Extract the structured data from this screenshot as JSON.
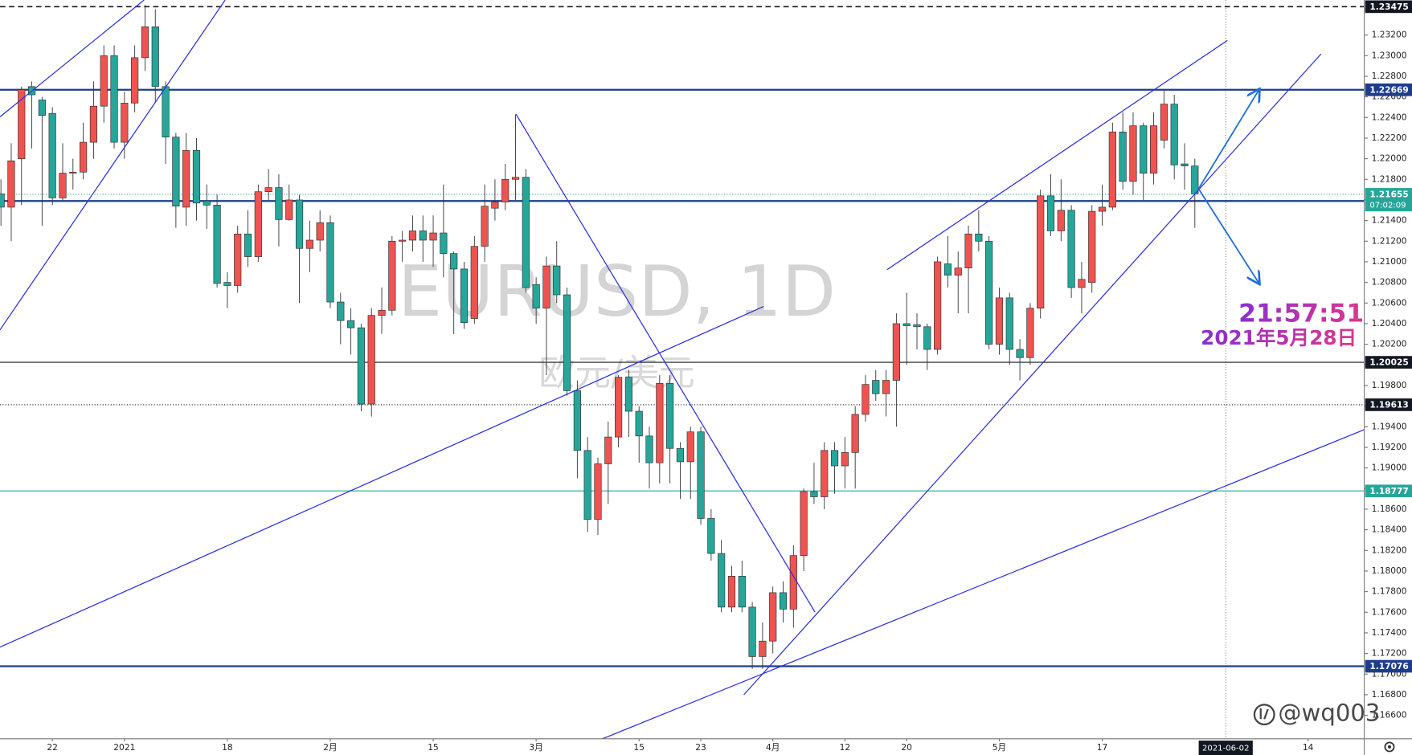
{
  "chart_data": {
    "type": "candlestick",
    "title": "EURUSD, 1D",
    "subtitle": "欧元/美元",
    "time_stamp": "21:57:51",
    "date_stamp": "2021年5月28日",
    "watermark": "@wq003",
    "up_color": "#ef5350",
    "down_color": "#26a69a",
    "grid": false,
    "open": [
      1.2166,
      1.2153,
      1.22,
      1.227,
      1.2257,
      1.2244,
      1.2162,
      1.2186,
      1.2187,
      1.2216,
      1.2251,
      1.23,
      1.2216,
      1.2254,
      1.2298,
      1.2328,
      1.227,
      1.2221,
      1.2153,
      1.2208,
      1.2159,
      1.2155,
      1.208,
      1.2077,
      1.2127,
      1.2105,
      1.2168,
      1.2172,
      1.2141,
      1.216,
      1.2113,
      1.2121,
      1.2138,
      1.2061,
      1.2043,
      1.2036,
      1.1962,
      1.2048,
      1.2053,
      1.212,
      1.2121,
      1.213,
      1.2121,
      1.2128,
      1.2108,
      1.2093,
      1.2045,
      1.2115,
      1.2152,
      1.2158,
      1.218,
      1.2182,
      1.2078,
      1.2055,
      1.2096,
      1.2068,
      1.1975,
      1.1917,
      1.185,
      1.1904,
      1.193,
      1.1988,
      1.1955,
      1.1931,
      1.1905,
      1.1982,
      1.1919,
      1.1906,
      1.1935,
      1.1851,
      1.1817,
      1.1765,
      1.1795,
      1.1765,
      1.1717,
      1.1732,
      1.1779,
      1.1763,
      1.1815,
      1.1877,
      1.1872,
      1.1917,
      1.1902,
      1.1915,
      1.1952,
      1.1985,
      1.1972,
      1.1985,
      1.204,
      1.2039,
      1.2037,
      1.2015,
      1.2098,
      1.2087,
      1.2094,
      1.2127,
      1.212,
      1.202,
      1.2065,
      1.2015,
      1.2007,
      1.2055,
      1.2164,
      1.213,
      1.215,
      1.2075,
      1.208,
      1.2149,
      1.2153,
      1.2226,
      1.2178,
      1.2232,
      1.2186,
      1.2218,
      1.2253,
      1.2195,
      1.2193
    ],
    "high": [
      1.218,
      1.2215,
      1.227,
      1.2275,
      1.226,
      1.225,
      1.2215,
      1.22,
      1.2235,
      1.2275,
      1.231,
      1.231,
      1.2265,
      1.231,
      1.2349,
      1.2345,
      1.2275,
      1.2225,
      1.2225,
      1.222,
      1.2175,
      1.2165,
      1.209,
      1.2135,
      1.215,
      1.2175,
      1.219,
      1.2185,
      1.2175,
      1.2165,
      1.214,
      1.215,
      1.2145,
      1.207,
      1.2055,
      1.204,
      1.2055,
      1.2075,
      1.2125,
      1.213,
      1.2145,
      1.2145,
      1.2145,
      1.2175,
      1.211,
      1.21,
      1.2125,
      1.2175,
      1.218,
      1.2195,
      1.2243,
      1.219,
      1.2085,
      1.2105,
      1.212,
      1.2075,
      1.1985,
      1.193,
      1.191,
      1.1945,
      1.199,
      1.1995,
      1.196,
      1.194,
      1.199,
      1.199,
      1.1925,
      1.194,
      1.194,
      1.186,
      1.183,
      1.1805,
      1.181,
      1.177,
      1.175,
      1.1785,
      1.179,
      1.1825,
      1.188,
      1.1905,
      1.1925,
      1.1925,
      1.193,
      1.196,
      1.199,
      1.1995,
      1.1995,
      1.205,
      1.207,
      1.205,
      1.204,
      1.2105,
      1.2125,
      1.211,
      1.2135,
      1.215,
      1.2125,
      1.2075,
      1.207,
      1.2025,
      1.206,
      1.217,
      1.2185,
      1.218,
      1.2155,
      1.21,
      1.2155,
      1.2175,
      1.2235,
      1.2245,
      1.2245,
      1.2235,
      1.2245,
      1.2266,
      1.2262,
      1.2215,
      1.22
    ],
    "low": [
      1.2135,
      1.212,
      1.2155,
      1.221,
      1.2135,
      1.2155,
      1.216,
      1.217,
      1.218,
      1.22,
      1.2235,
      1.221,
      1.22,
      1.2245,
      1.2285,
      1.2255,
      1.2195,
      1.2133,
      1.2135,
      1.214,
      1.2132,
      1.2075,
      1.2055,
      1.207,
      1.2095,
      1.21,
      1.216,
      1.2115,
      1.214,
      1.206,
      1.209,
      1.211,
      1.2055,
      1.202,
      1.201,
      1.1955,
      1.195,
      1.203,
      1.2048,
      1.21,
      1.211,
      1.21,
      1.2095,
      1.2085,
      1.203,
      1.2035,
      1.204,
      1.21,
      1.214,
      1.215,
      1.216,
      1.207,
      1.204,
      1.199,
      1.206,
      1.197,
      1.189,
      1.1838,
      1.1835,
      1.1865,
      1.192,
      1.193,
      1.1905,
      1.188,
      1.1885,
      1.1885,
      1.187,
      1.187,
      1.1845,
      1.181,
      1.176,
      1.176,
      1.176,
      1.1705,
      1.1705,
      1.172,
      1.175,
      1.1745,
      1.18,
      1.1865,
      1.186,
      1.1875,
      1.188,
      1.188,
      1.1945,
      1.1965,
      1.195,
      1.194,
      1.2,
      1.2015,
      1.1995,
      1.201,
      1.2075,
      1.205,
      1.205,
      1.211,
      1.2015,
      1.201,
      1.2,
      1.1985,
      1.2,
      1.2045,
      1.2125,
      1.212,
      1.2065,
      1.205,
      1.207,
      1.2135,
      1.215,
      1.217,
      1.2165,
      1.216,
      1.2175,
      1.221,
      1.218,
      1.217,
      1.2133
    ],
    "close": [
      1.2153,
      1.2198,
      1.2267,
      1.2262,
      1.2242,
      1.2162,
      1.2186,
      1.2187,
      1.2216,
      1.2251,
      1.23,
      1.2216,
      1.2254,
      1.2298,
      1.2328,
      1.227,
      1.2221,
      1.2154,
      1.2208,
      1.2157,
      1.2155,
      1.2079,
      1.2077,
      1.2127,
      1.2105,
      1.2168,
      1.2172,
      1.2141,
      1.216,
      1.2113,
      1.2121,
      1.2138,
      1.2061,
      1.2043,
      1.2036,
      1.1962,
      1.2048,
      1.2053,
      1.212,
      1.2121,
      1.213,
      1.2121,
      1.2128,
      1.2108,
      1.2093,
      1.2041,
      1.2115,
      1.2154,
      1.2158,
      1.218,
      1.2182,
      1.2075,
      1.2055,
      1.2096,
      1.2068,
      1.1975,
      1.1917,
      1.185,
      1.1904,
      1.193,
      1.1988,
      1.1955,
      1.1931,
      1.1905,
      1.1982,
      1.1919,
      1.1906,
      1.1935,
      1.1851,
      1.1817,
      1.1765,
      1.1795,
      1.1765,
      1.1717,
      1.1732,
      1.1779,
      1.1763,
      1.1815,
      1.1877,
      1.1872,
      1.1917,
      1.1902,
      1.1915,
      1.1952,
      1.1981,
      1.1972,
      1.1985,
      1.204,
      1.2038,
      1.2037,
      1.2015,
      1.21,
      1.2087,
      1.2094,
      1.2127,
      1.212,
      1.202,
      1.2065,
      1.2015,
      1.2007,
      1.2055,
      1.2164,
      1.213,
      1.215,
      1.2075,
      1.2083,
      1.2149,
      1.2153,
      1.2226,
      1.2178,
      1.2232,
      1.2186,
      1.2232,
      1.2253,
      1.2194,
      1.2193,
      1.2166
    ],
    "xlim": [
      -0.09,
      132.46
    ],
    "xticks": [
      {
        "value": 5,
        "label": "22"
      },
      {
        "value": 12,
        "label": "2021"
      },
      {
        "value": 22,
        "label": "18"
      },
      {
        "value": 32,
        "label": "2月"
      },
      {
        "value": 42,
        "label": "15"
      },
      {
        "value": 52,
        "label": "3月"
      },
      {
        "value": 62,
        "label": "15"
      },
      {
        "value": 68,
        "label": "23"
      },
      {
        "value": 75,
        "label": "4月"
      },
      {
        "value": 82,
        "label": "12"
      },
      {
        "value": 88,
        "label": "20"
      },
      {
        "value": 97,
        "label": "5月"
      },
      {
        "value": 107,
        "label": "17"
      },
      {
        "value": 127,
        "label": "14"
      }
    ],
    "crosshair_x": {
      "value": 119,
      "label": "2021-06-02"
    },
    "ylim": [
      1.16372,
      1.2354
    ],
    "yticks": [
      {
        "value": 1.166,
        "label": "1.16600"
      },
      {
        "value": 1.168,
        "label": "1.16800"
      },
      {
        "value": 1.17,
        "label": "1.17000"
      },
      {
        "value": 1.172,
        "label": "1.17200"
      },
      {
        "value": 1.174,
        "label": "1.17400"
      },
      {
        "value": 1.176,
        "label": "1.17600"
      },
      {
        "value": 1.178,
        "label": "1.17800"
      },
      {
        "value": 1.18,
        "label": "1.18000"
      },
      {
        "value": 1.182,
        "label": "1.18200"
      },
      {
        "value": 1.184,
        "label": "1.18400"
      },
      {
        "value": 1.186,
        "label": "1.18600"
      },
      {
        "value": 1.188,
        "label": "1.18800"
      },
      {
        "value": 1.19,
        "label": "1.19000"
      },
      {
        "value": 1.192,
        "label": "1.19200"
      },
      {
        "value": 1.194,
        "label": "1.19400"
      },
      {
        "value": 1.196,
        "label": "1.19600"
      },
      {
        "value": 1.198,
        "label": "1.19800"
      },
      {
        "value": 1.2,
        "label": "1.20000"
      },
      {
        "value": 1.202,
        "label": "1.20200"
      },
      {
        "value": 1.204,
        "label": "1.20400"
      },
      {
        "value": 1.206,
        "label": "1.20600"
      },
      {
        "value": 1.208,
        "label": "1.20800"
      },
      {
        "value": 1.21,
        "label": "1.21000"
      },
      {
        "value": 1.212,
        "label": "1.21200"
      },
      {
        "value": 1.214,
        "label": "1.21400"
      },
      {
        "value": 1.216,
        "label": "1.21600"
      },
      {
        "value": 1.218,
        "label": "1.21800"
      },
      {
        "value": 1.22,
        "label": "1.22000"
      },
      {
        "value": 1.222,
        "label": "1.22200"
      },
      {
        "value": 1.224,
        "label": "1.22400"
      },
      {
        "value": 1.226,
        "label": "1.22600"
      },
      {
        "value": 1.228,
        "label": "1.22800"
      },
      {
        "value": 1.23,
        "label": "1.23000"
      },
      {
        "value": 1.232,
        "label": "1.23200"
      }
    ],
    "price_levels": [
      {
        "value": 1.23475,
        "label": "1.23475",
        "color": "#131722",
        "style": "dashed"
      },
      {
        "value": 1.22669,
        "label": "1.22669",
        "color": "#1c3d8c",
        "style": "thick"
      },
      {
        "value": 1.2159,
        "color": "#1c3d8c",
        "style": "thick"
      },
      {
        "value": 1.20025,
        "label": "1.20025",
        "color": "#131722",
        "style": "solid"
      },
      {
        "value": 1.19613,
        "label": "1.19613",
        "color": "#131722",
        "style": "dotted"
      },
      {
        "value": 1.18777,
        "label": "1.18777",
        "color": "#26a69a",
        "style": "solid"
      },
      {
        "value": 1.17076,
        "label": "1.17076",
        "color": "#1c3d8c",
        "style": "thick"
      }
    ],
    "last_price": {
      "value": 1.21655,
      "label": "1.21655",
      "countdown": "07:02:09",
      "color": "#26a69a"
    }
  }
}
